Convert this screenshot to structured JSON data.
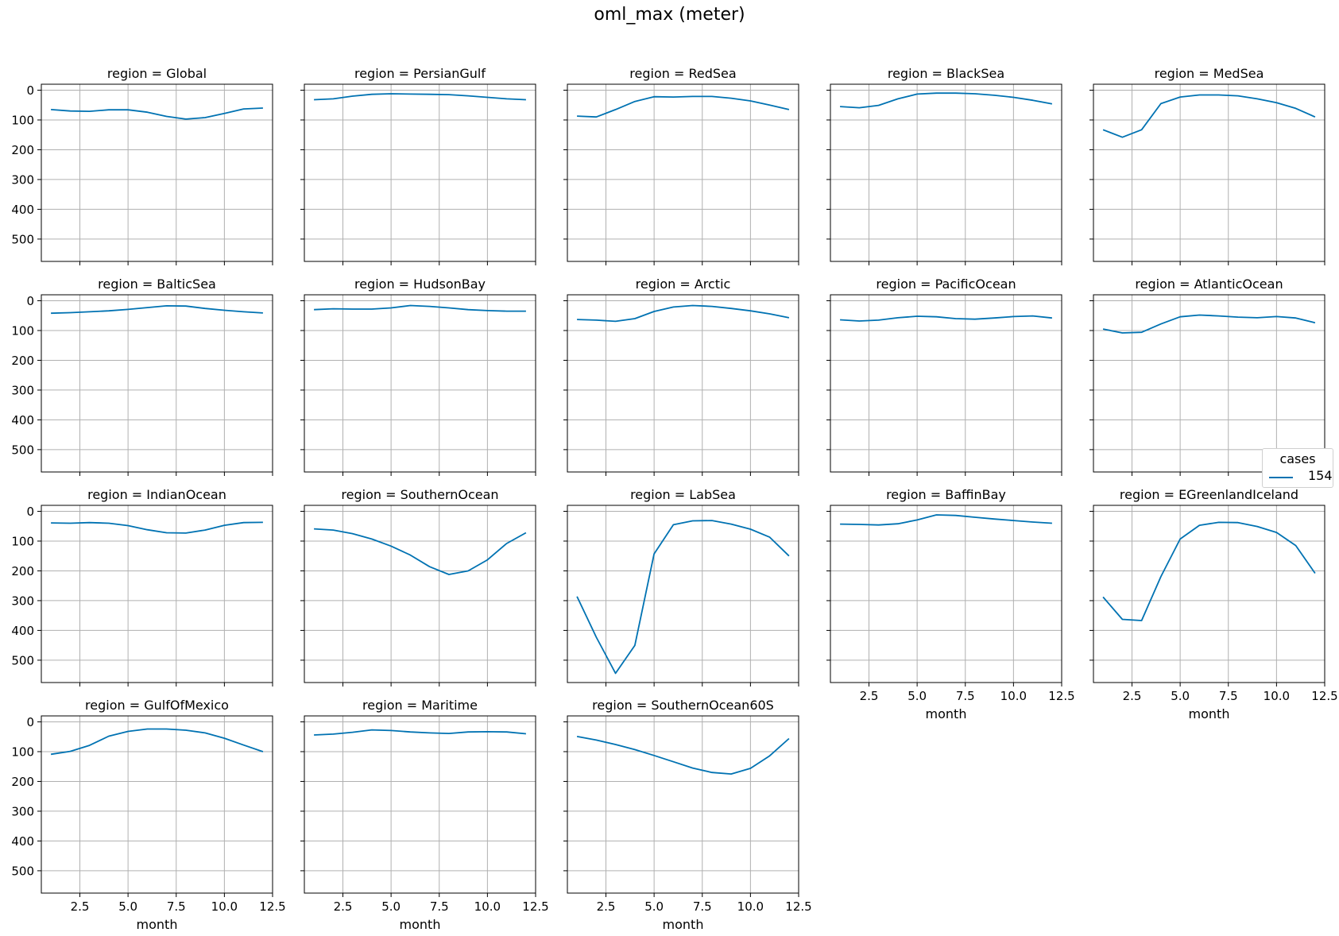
{
  "title": "oml_max (meter)",
  "legend": {
    "title": "cases",
    "entries": [
      {
        "label": "154",
        "color": "#0072b2"
      }
    ]
  },
  "chart_data": {
    "type": "line",
    "facet_label_prefix": "region = ",
    "xlabel": "month",
    "xlim": [
      0.5,
      12.5
    ],
    "ylim": [
      575,
      -20
    ],
    "y_inverted": true,
    "grid": true,
    "legend_position": "right",
    "line_color": "#0072b2",
    "xticks": [
      "2.5",
      "5.0",
      "7.5",
      "10.0",
      "12.5"
    ],
    "yticks": [
      "0",
      "100",
      "200",
      "300",
      "400",
      "500"
    ],
    "x": [
      1,
      2,
      3,
      4,
      5,
      6,
      7,
      8,
      9,
      10,
      11,
      12
    ],
    "panels": [
      {
        "region": "Global",
        "values": [
          65,
          70,
          71,
          66,
          66,
          74,
          88,
          97,
          92,
          78,
          63,
          60
        ]
      },
      {
        "region": "PersianGulf",
        "values": [
          32,
          29,
          20,
          14,
          12,
          13,
          14,
          15,
          19,
          24,
          29,
          32
        ]
      },
      {
        "region": "RedSea",
        "values": [
          87,
          90,
          65,
          38,
          22,
          23,
          21,
          21,
          27,
          36,
          50,
          65
        ]
      },
      {
        "region": "BlackSea",
        "values": [
          55,
          59,
          51,
          29,
          13,
          10,
          10,
          12,
          17,
          24,
          34,
          46
        ]
      },
      {
        "region": "MedSea",
        "values": [
          133,
          158,
          133,
          45,
          23,
          16,
          16,
          19,
          29,
          42,
          61,
          90
        ]
      },
      {
        "region": "BalticSea",
        "values": [
          42,
          40,
          37,
          34,
          29,
          23,
          17,
          18,
          26,
          32,
          37,
          41
        ]
      },
      {
        "region": "HudsonBay",
        "values": [
          30,
          27,
          28,
          28,
          24,
          16,
          19,
          24,
          30,
          33,
          35,
          35
        ]
      },
      {
        "region": "Arctic",
        "values": [
          63,
          65,
          69,
          60,
          36,
          21,
          16,
          19,
          26,
          34,
          44,
          57
        ]
      },
      {
        "region": "PacificOcean",
        "values": [
          64,
          68,
          65,
          57,
          52,
          54,
          60,
          62,
          58,
          53,
          51,
          58
        ]
      },
      {
        "region": "AtlanticOcean",
        "values": [
          95,
          108,
          106,
          78,
          54,
          48,
          51,
          55,
          57,
          53,
          58,
          74
        ]
      },
      {
        "region": "IndianOcean",
        "values": [
          39,
          40,
          38,
          40,
          48,
          62,
          72,
          73,
          63,
          47,
          38,
          37
        ]
      },
      {
        "region": "SouthernOcean",
        "values": [
          59,
          63,
          75,
          93,
          117,
          147,
          186,
          212,
          200,
          163,
          108,
          72
        ]
      },
      {
        "region": "LabSea",
        "values": [
          286,
          423,
          544,
          450,
          143,
          45,
          32,
          31,
          43,
          60,
          87,
          150
        ]
      },
      {
        "region": "BaffinBay",
        "values": [
          43,
          44,
          46,
          42,
          29,
          12,
          14,
          20,
          26,
          31,
          36,
          40
        ]
      },
      {
        "region": "EGreenlandIceland",
        "values": [
          288,
          363,
          367,
          219,
          93,
          47,
          37,
          38,
          51,
          71,
          115,
          208
        ]
      },
      {
        "region": "GulfOfMexico",
        "values": [
          109,
          99,
          79,
          48,
          32,
          24,
          24,
          28,
          37,
          55,
          78,
          100
        ]
      },
      {
        "region": "Maritime",
        "values": [
          44,
          41,
          35,
          27,
          29,
          34,
          37,
          39,
          34,
          33,
          34,
          40
        ]
      },
      {
        "region": "SouthernOcean60S",
        "values": [
          49,
          61,
          76,
          93,
          113,
          134,
          155,
          170,
          175,
          156,
          114,
          56
        ]
      }
    ]
  }
}
